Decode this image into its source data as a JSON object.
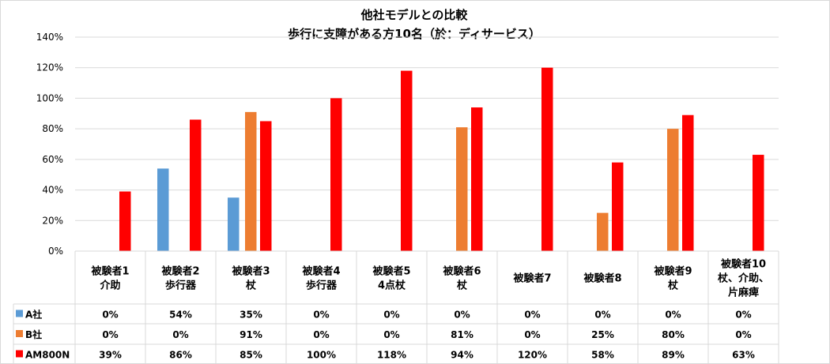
{
  "chart_data": {
    "type": "bar",
    "title": [
      "他社モデルとの比較",
      "歩行に支障がある方10名（於：ディサービス）"
    ],
    "xlabel": "",
    "ylabel": "",
    "ylim": [
      0,
      1.4
    ],
    "yticks": [
      "0%",
      "20%",
      "40%",
      "60%",
      "80%",
      "100%",
      "120%",
      "140%"
    ],
    "grid": true,
    "legend": "data-table",
    "categories": [
      [
        "被験者1",
        "介助"
      ],
      [
        "被験者2",
        "歩行器"
      ],
      [
        "被験者3",
        "杖"
      ],
      [
        "被験者4",
        "歩行器"
      ],
      [
        "被験者5",
        "4点杖"
      ],
      [
        "被験者6",
        "杖"
      ],
      [
        "被験者7"
      ],
      [
        "被験者8"
      ],
      [
        "被験者9",
        "杖"
      ],
      [
        "被験者10",
        "杖、介助、",
        "片麻痺"
      ]
    ],
    "series": [
      {
        "name": "A社",
        "color": "#5b9bd5",
        "values": [
          0,
          0.54,
          0.35,
          0,
          0,
          0,
          0,
          0,
          0,
          0
        ],
        "labels": [
          "0%",
          "54%",
          "35%",
          "0%",
          "0%",
          "0%",
          "0%",
          "0%",
          "0%",
          "0%"
        ]
      },
      {
        "name": "B社",
        "color": "#ed7d31",
        "values": [
          0,
          0,
          0.91,
          0,
          0,
          0.81,
          0,
          0.25,
          0.8,
          0
        ],
        "labels": [
          "0%",
          "0%",
          "91%",
          "0%",
          "0%",
          "81%",
          "0%",
          "25%",
          "80%",
          "0%"
        ]
      },
      {
        "name": "AM800N",
        "color": "#ff0000",
        "values": [
          0.39,
          0.86,
          0.85,
          1.0,
          1.18,
          0.94,
          1.2,
          0.58,
          0.89,
          0.63
        ],
        "labels": [
          "39%",
          "86%",
          "85%",
          "100%",
          "118%",
          "94%",
          "120%",
          "58%",
          "89%",
          "63%"
        ]
      }
    ]
  }
}
